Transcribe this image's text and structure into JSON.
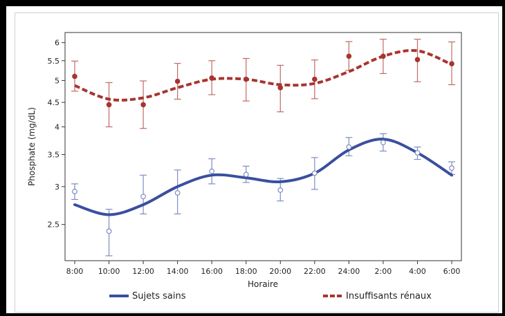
{
  "chart_data": {
    "type": "line",
    "title": "",
    "xlabel": "Horaire",
    "ylabel": "Phosphate (mg/dL)",
    "categories": [
      "8:00",
      "10:00",
      "12:00",
      "14:00",
      "16:00",
      "18:00",
      "20:00",
      "22:00",
      "24:00",
      "2:00",
      "4:00",
      "6:00"
    ],
    "y_ticks": [
      "2.5",
      "3",
      "3.5",
      "4",
      "4.5",
      "5",
      "5.5",
      "6"
    ],
    "ylim": [
      2.1,
      6.3
    ],
    "y_scale": "log",
    "grid": false,
    "legend_position": "bottom",
    "series": [
      {
        "name": "Sujets sains",
        "color": "#3a4f9e",
        "marker": "open-circle",
        "line_style": "solid",
        "values": [
          2.93,
          2.42,
          2.86,
          2.91,
          3.23,
          3.18,
          2.95,
          3.2,
          3.63,
          3.71,
          3.53,
          3.28
        ],
        "error_low": [
          2.82,
          2.15,
          2.63,
          2.63,
          3.04,
          3.06,
          2.8,
          2.96,
          3.48,
          3.56,
          3.42,
          3.18
        ],
        "error_high": [
          3.04,
          2.69,
          3.17,
          3.25,
          3.43,
          3.31,
          3.12,
          3.45,
          3.8,
          3.87,
          3.63,
          3.38
        ],
        "fit": [
          2.75,
          2.62,
          2.75,
          3.0,
          3.17,
          3.13,
          3.07,
          3.2,
          3.58,
          3.77,
          3.53,
          3.17
        ]
      },
      {
        "name": "Insuffisants rénaux",
        "color": "#a8342f",
        "marker": "filled-circle",
        "line_style": "dashed",
        "values": [
          5.1,
          4.45,
          4.45,
          4.98,
          5.06,
          5.03,
          4.83,
          5.03,
          5.62,
          5.62,
          5.53,
          5.42
        ],
        "error_low": [
          4.75,
          4.0,
          3.97,
          4.57,
          4.67,
          4.53,
          4.3,
          4.58,
          5.25,
          5.17,
          4.97,
          4.9
        ],
        "error_high": [
          5.49,
          4.95,
          4.99,
          5.43,
          5.5,
          5.56,
          5.38,
          5.52,
          6.03,
          6.1,
          6.1,
          6.02
        ],
        "fit": [
          4.88,
          4.57,
          4.6,
          4.83,
          5.03,
          5.03,
          4.9,
          4.93,
          5.22,
          5.62,
          5.77,
          5.4
        ]
      }
    ]
  }
}
